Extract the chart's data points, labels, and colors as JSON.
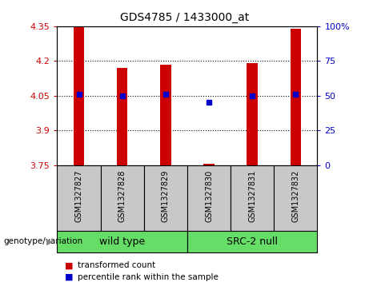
{
  "title": "GDS4785 / 1433000_at",
  "samples": [
    "GSM1327827",
    "GSM1327828",
    "GSM1327829",
    "GSM1327830",
    "GSM1327831",
    "GSM1327832"
  ],
  "red_values": [
    4.345,
    4.17,
    4.185,
    3.757,
    4.19,
    4.34
  ],
  "blue_values": [
    4.057,
    4.05,
    4.055,
    4.022,
    4.05,
    4.057
  ],
  "ylim_left": [
    3.75,
    4.35
  ],
  "yticks_left": [
    3.75,
    3.9,
    4.05,
    4.2,
    4.35
  ],
  "ytick_labels_left": [
    "3.75",
    "3.9",
    "4.05",
    "4.2",
    "4.35"
  ],
  "ylim_right": [
    0,
    100
  ],
  "yticks_right": [
    0,
    25,
    50,
    75,
    100
  ],
  "ytick_labels_right": [
    "0",
    "25",
    "50",
    "75",
    "100%"
  ],
  "hlines": [
    3.9,
    4.05,
    4.2
  ],
  "bar_bottom": 3.75,
  "groups": [
    {
      "label": "wild type",
      "indices": [
        0,
        1,
        2
      ],
      "color": "#66DD66"
    },
    {
      "label": "SRC-2 null",
      "indices": [
        3,
        4,
        5
      ],
      "color": "#66DD66"
    }
  ],
  "group_label_prefix": "genotype/variation",
  "red_color": "#CC0000",
  "blue_color": "#0000CC",
  "bar_bg_color": "#C8C8C8",
  "legend_red_label": "transformed count",
  "legend_blue_label": "percentile rank within the sample",
  "bar_width": 0.25,
  "title_fontsize": 10,
  "tick_fontsize": 8,
  "sample_fontsize": 7,
  "group_fontsize": 9
}
